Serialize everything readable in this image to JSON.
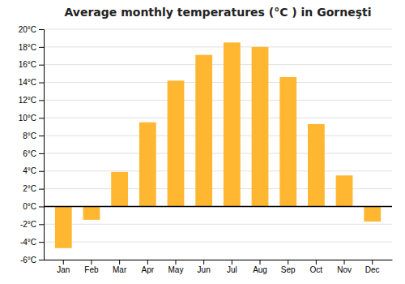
{
  "chart_data": {
    "type": "bar",
    "title": "Average monthly temperatures (°C ) in Gorneşti",
    "categories": [
      "Jan",
      "Feb",
      "Mar",
      "Apr",
      "May",
      "Jun",
      "Jul",
      "Aug",
      "Sep",
      "Oct",
      "Nov",
      "Dec"
    ],
    "values": [
      -4.7,
      -1.5,
      3.9,
      9.5,
      14.2,
      17.1,
      18.5,
      18.0,
      14.6,
      9.3,
      3.5,
      -1.7
    ],
    "color": "#FFB732",
    "ylim": [
      -6,
      20
    ],
    "yticks": [
      {
        "value": -6,
        "label": "-6°C"
      },
      {
        "value": -4,
        "label": "-4°C"
      },
      {
        "value": -2,
        "label": "-2°C"
      },
      {
        "value": 0,
        "label": "0°C"
      },
      {
        "value": 2,
        "label": "2°C"
      },
      {
        "value": 4,
        "label": "4°C"
      },
      {
        "value": 6,
        "label": "6°C"
      },
      {
        "value": 8,
        "label": "8°C"
      },
      {
        "value": 10,
        "label": "10°C"
      },
      {
        "value": 12,
        "label": "12°C"
      },
      {
        "value": 14,
        "label": "14°C"
      },
      {
        "value": 16,
        "label": "16°C"
      },
      {
        "value": 18,
        "label": "18°C"
      },
      {
        "value": 20,
        "label": "20°C"
      }
    ],
    "grid": true
  }
}
